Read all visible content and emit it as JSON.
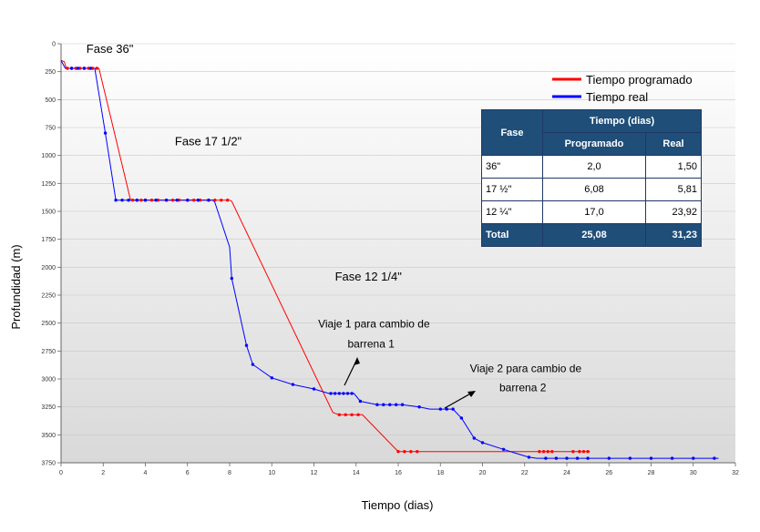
{
  "chart_data": {
    "type": "line",
    "xlabel": "Tiempo (dias)",
    "ylabel": "Profundidad (m)",
    "xlim": [
      0,
      32
    ],
    "ylim": [
      0,
      3750
    ],
    "y_inverted": true,
    "x_ticks": [
      0,
      2,
      4,
      6,
      8,
      10,
      12,
      14,
      16,
      18,
      20,
      22,
      24,
      26,
      28,
      30,
      32
    ],
    "y_ticks": [
      0,
      250,
      500,
      750,
      1000,
      1250,
      1500,
      1750,
      2000,
      2250,
      2500,
      2750,
      3000,
      3250,
      3500,
      3750
    ],
    "series": [
      {
        "name": "Tiempo programado",
        "color": "#ff0000",
        "points": [
          [
            0,
            150
          ],
          [
            0.15,
            160
          ],
          [
            0.25,
            220
          ],
          [
            0.6,
            220
          ],
          [
            1.0,
            220
          ],
          [
            1.4,
            220
          ],
          [
            1.8,
            220
          ],
          [
            3.3,
            1400
          ],
          [
            4,
            1400
          ],
          [
            5,
            1400
          ],
          [
            6,
            1400
          ],
          [
            7,
            1400
          ],
          [
            8,
            1400
          ],
          [
            8.1,
            1410
          ],
          [
            12.9,
            3300
          ],
          [
            13.2,
            3320
          ],
          [
            14.3,
            3320
          ],
          [
            16,
            3650
          ],
          [
            25.1,
            3650
          ]
        ],
        "markers": [
          [
            0.3,
            220
          ],
          [
            0.5,
            220
          ],
          [
            0.7,
            220
          ],
          [
            0.9,
            220
          ],
          [
            1.1,
            220
          ],
          [
            1.3,
            220
          ],
          [
            1.5,
            220
          ],
          [
            1.7,
            220
          ],
          [
            3.4,
            1400
          ],
          [
            3.6,
            1400
          ],
          [
            3.8,
            1400
          ],
          [
            4.0,
            1400
          ],
          [
            4.3,
            1400
          ],
          [
            4.6,
            1400
          ],
          [
            5.0,
            1400
          ],
          [
            5.3,
            1400
          ],
          [
            5.6,
            1400
          ],
          [
            6.0,
            1400
          ],
          [
            6.3,
            1400
          ],
          [
            6.6,
            1400
          ],
          [
            7.0,
            1400
          ],
          [
            7.3,
            1400
          ],
          [
            7.6,
            1400
          ],
          [
            7.9,
            1400
          ],
          [
            13.2,
            3320
          ],
          [
            13.5,
            3320
          ],
          [
            13.8,
            3320
          ],
          [
            14.1,
            3320
          ],
          [
            16.0,
            3650
          ],
          [
            16.3,
            3650
          ],
          [
            16.6,
            3650
          ],
          [
            16.9,
            3650
          ],
          [
            22.7,
            3650
          ],
          [
            22.9,
            3650
          ],
          [
            23.1,
            3650
          ],
          [
            23.3,
            3650
          ],
          [
            24.3,
            3650
          ],
          [
            24.6,
            3650
          ],
          [
            24.8,
            3650
          ],
          [
            25.0,
            3650
          ]
        ]
      },
      {
        "name": "Tiempo real",
        "color": "#0000ff",
        "points": [
          [
            0,
            150
          ],
          [
            0.2,
            220
          ],
          [
            1.6,
            220
          ],
          [
            2.1,
            800
          ],
          [
            2.6,
            1400
          ],
          [
            7.2,
            1400
          ],
          [
            7.3,
            1420
          ],
          [
            8.0,
            1820
          ],
          [
            8.1,
            2100
          ],
          [
            8.8,
            2700
          ],
          [
            9.1,
            2870
          ],
          [
            10.0,
            2990
          ],
          [
            11.0,
            3050
          ],
          [
            12.0,
            3090
          ],
          [
            12.7,
            3130
          ],
          [
            13.9,
            3130
          ],
          [
            14.2,
            3200
          ],
          [
            15.0,
            3230
          ],
          [
            16.2,
            3230
          ],
          [
            17.0,
            3250
          ],
          [
            17.5,
            3270
          ],
          [
            18.6,
            3270
          ],
          [
            19.0,
            3350
          ],
          [
            19.6,
            3530
          ],
          [
            20.0,
            3570
          ],
          [
            21.0,
            3630
          ],
          [
            21.5,
            3660
          ],
          [
            22.2,
            3700
          ],
          [
            22.6,
            3710
          ],
          [
            31.2,
            3710
          ]
        ],
        "markers": [
          [
            0.5,
            220
          ],
          [
            0.8,
            220
          ],
          [
            1.1,
            220
          ],
          [
            1.4,
            220
          ],
          [
            2.1,
            800
          ],
          [
            2.6,
            1400
          ],
          [
            2.9,
            1400
          ],
          [
            3.2,
            1400
          ],
          [
            3.6,
            1400
          ],
          [
            4.0,
            1400
          ],
          [
            4.5,
            1400
          ],
          [
            5.0,
            1400
          ],
          [
            5.5,
            1400
          ],
          [
            6.0,
            1400
          ],
          [
            6.5,
            1400
          ],
          [
            7.0,
            1400
          ],
          [
            8.1,
            2100
          ],
          [
            8.8,
            2700
          ],
          [
            9.1,
            2870
          ],
          [
            10.0,
            2990
          ],
          [
            11.0,
            3050
          ],
          [
            12.0,
            3090
          ],
          [
            12.8,
            3130
          ],
          [
            13.0,
            3130
          ],
          [
            13.2,
            3130
          ],
          [
            13.4,
            3130
          ],
          [
            13.6,
            3130
          ],
          [
            13.8,
            3130
          ],
          [
            14.2,
            3200
          ],
          [
            15.0,
            3230
          ],
          [
            15.3,
            3230
          ],
          [
            15.6,
            3230
          ],
          [
            15.9,
            3230
          ],
          [
            16.2,
            3230
          ],
          [
            17.0,
            3250
          ],
          [
            18.0,
            3270
          ],
          [
            18.3,
            3270
          ],
          [
            18.6,
            3270
          ],
          [
            19.0,
            3350
          ],
          [
            19.6,
            3530
          ],
          [
            20.0,
            3570
          ],
          [
            21.0,
            3630
          ],
          [
            22.2,
            3700
          ],
          [
            23.0,
            3710
          ],
          [
            23.5,
            3710
          ],
          [
            24.0,
            3710
          ],
          [
            24.5,
            3710
          ],
          [
            25.0,
            3710
          ],
          [
            26.0,
            3710
          ],
          [
            27.0,
            3710
          ],
          [
            28.0,
            3710
          ],
          [
            29.0,
            3710
          ],
          [
            30.0,
            3710
          ],
          [
            31.0,
            3710
          ]
        ]
      }
    ],
    "annotations": [
      {
        "id": "fase36",
        "text": "Fase 36\"",
        "x": 1.2,
        "y": 80
      },
      {
        "id": "fase17",
        "text": "Fase 17 1/2\"",
        "x": 5.4,
        "y": 910
      },
      {
        "id": "fase12",
        "text": "Fase 12 1/4\"",
        "x": 13.0,
        "y": 2120
      },
      {
        "id": "viaje1a",
        "text": "Viaje 1 para cambio de",
        "x": 12.2,
        "y": 2540
      },
      {
        "id": "viaje1b",
        "text": "barrena 1",
        "x": 13.6,
        "y": 2720
      },
      {
        "id": "viaje2a",
        "text": "Viaje 2 para cambio de",
        "x": 19.4,
        "y": 2940
      },
      {
        "id": "viaje2b",
        "text": "barrena 2",
        "x": 20.8,
        "y": 3110
      }
    ],
    "legend": {
      "position": "top-right",
      "entries": [
        "Tiempo programado",
        "Tiempo real"
      ]
    }
  },
  "table": {
    "headers": {
      "fase": "Fase",
      "tiempo": "Tiempo (dias)",
      "programado": "Programado",
      "real": "Real"
    },
    "rows": [
      {
        "fase": "36\"",
        "programado": "2,0",
        "real": "1,50"
      },
      {
        "fase": "17 ½\"",
        "programado": "6,08",
        "real": "5,81"
      },
      {
        "fase": "12 ¼\"",
        "programado": "17,0",
        "real": "23,92"
      }
    ],
    "total": {
      "fase": "Total",
      "programado": "25,08",
      "real": "31,23"
    }
  }
}
